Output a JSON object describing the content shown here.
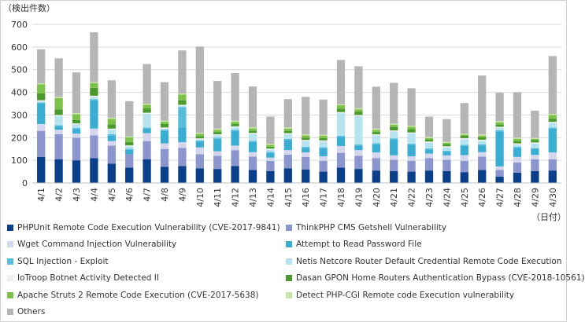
{
  "chart_data": {
    "type": "bar",
    "stacked": true,
    "y_unit_label": "（検出件数）",
    "x_unit_label": "（日付）",
    "ylim": [
      0,
      700
    ],
    "yticks": [
      0,
      100,
      200,
      300,
      400,
      500,
      600,
      700
    ],
    "grid": true,
    "legend_position": "bottom",
    "categories": [
      "4/1",
      "4/2",
      "4/3",
      "4/4",
      "4/5",
      "4/6",
      "4/7",
      "4/8",
      "4/9",
      "4/10",
      "4/11",
      "4/12",
      "4/13",
      "4/14",
      "4/15",
      "4/16",
      "4/17",
      "4/18",
      "4/19",
      "4/20",
      "4/21",
      "4/22",
      "4/23",
      "4/24",
      "4/25",
      "4/26",
      "4/27",
      "4/28",
      "4/29",
      "4/30"
    ],
    "series": [
      {
        "name": "PHPUnit Remote Code Execution Vulnerability (CVE-2017-9841)",
        "color": "#0b3f8c",
        "values": [
          115,
          105,
          100,
          110,
          85,
          68,
          105,
          72,
          75,
          65,
          62,
          75,
          58,
          52,
          65,
          60,
          50,
          68,
          62,
          55,
          52,
          50,
          55,
          52,
          48,
          58,
          28,
          45,
          52,
          55
        ]
      },
      {
        "name": "ThinkPHP CMS Getshell Vulnerability",
        "color": "#8b96cf",
        "values": [
          115,
          110,
          100,
          100,
          80,
          58,
          80,
          78,
          80,
          62,
          58,
          70,
          58,
          45,
          60,
          55,
          48,
          65,
          58,
          55,
          50,
          48,
          55,
          50,
          50,
          58,
          30,
          45,
          52,
          50
        ]
      },
      {
        "name": "Wget Command Injection Vulnerability",
        "color": "#d3d6ec",
        "values": [
          30,
          20,
          18,
          30,
          20,
          0,
          35,
          25,
          25,
          30,
          20,
          20,
          20,
          15,
          20,
          20,
          20,
          30,
          25,
          25,
          20,
          20,
          20,
          20,
          25,
          20,
          15,
          25,
          20,
          30
        ]
      },
      {
        "name": "Attempt to Read Password File",
        "color": "#3aaed2",
        "values": [
          90,
          15,
          20,
          125,
          25,
          20,
          20,
          55,
          65,
          25,
          55,
          65,
          45,
          20,
          45,
          20,
          35,
          40,
          20,
          35,
          70,
          50,
          18,
          15,
          40,
          30,
          155,
          40,
          25,
          105
        ]
      },
      {
        "name": "SQL Injection - Exploit",
        "color": "#56bedc",
        "values": [
          5,
          5,
          5,
          5,
          5,
          5,
          5,
          5,
          90,
          5,
          5,
          5,
          5,
          5,
          5,
          5,
          5,
          5,
          5,
          5,
          5,
          5,
          5,
          5,
          5,
          5,
          5,
          5,
          5,
          5
        ]
      },
      {
        "name": "Netis Netcore Router Default Credential Remote Code Execution",
        "color": "#b6e3ef",
        "values": [
          5,
          40,
          15,
          10,
          20,
          10,
          60,
          5,
          5,
          5,
          10,
          10,
          30,
          10,
          20,
          25,
          25,
          100,
          125,
          35,
          30,
          45,
          25,
          15,
          25,
          15,
          10,
          10,
          20,
          20
        ]
      },
      {
        "name": "IoTroop Botnet Activity Detected II",
        "color": "#eeeeee",
        "values": [
          5,
          5,
          5,
          5,
          5,
          5,
          5,
          5,
          5,
          5,
          5,
          5,
          5,
          5,
          5,
          5,
          5,
          5,
          5,
          5,
          5,
          5,
          5,
          5,
          5,
          5,
          5,
          5,
          5,
          5
        ]
      },
      {
        "name": "Dasan GPON Home Routers Authentication Bypass (CVE-2018-10561)",
        "color": "#4a9a2e",
        "values": [
          30,
          25,
          15,
          35,
          18,
          15,
          20,
          15,
          20,
          10,
          10,
          10,
          10,
          8,
          10,
          10,
          10,
          15,
          15,
          10,
          15,
          15,
          10,
          10,
          10,
          10,
          10,
          10,
          10,
          15
        ]
      },
      {
        "name": "Apache Struts 2 Remote Code Execution (CVE-2017-5638)",
        "color": "#7cc24a",
        "values": [
          40,
          50,
          25,
          20,
          25,
          20,
          15,
          10,
          25,
          10,
          10,
          10,
          10,
          8,
          10,
          10,
          10,
          15,
          10,
          10,
          10,
          10,
          5,
          5,
          5,
          8,
          10,
          10,
          5,
          15
        ]
      },
      {
        "name": "Detect PHP-CGI Remote code Execution vulnerability",
        "color": "#c8e4a6",
        "values": [
          5,
          5,
          5,
          5,
          5,
          5,
          5,
          5,
          5,
          5,
          5,
          5,
          5,
          5,
          5,
          5,
          5,
          5,
          5,
          5,
          5,
          5,
          5,
          5,
          5,
          5,
          5,
          5,
          5,
          5
        ]
      },
      {
        "name": "Others",
        "color": "#b5b5b5",
        "values": [
          150,
          170,
          180,
          220,
          165,
          155,
          175,
          170,
          190,
          380,
          210,
          210,
          180,
          120,
          125,
          165,
          155,
          195,
          185,
          185,
          180,
          165,
          90,
          100,
          135,
          260,
          125,
          200,
          120,
          255
        ]
      }
    ]
  }
}
